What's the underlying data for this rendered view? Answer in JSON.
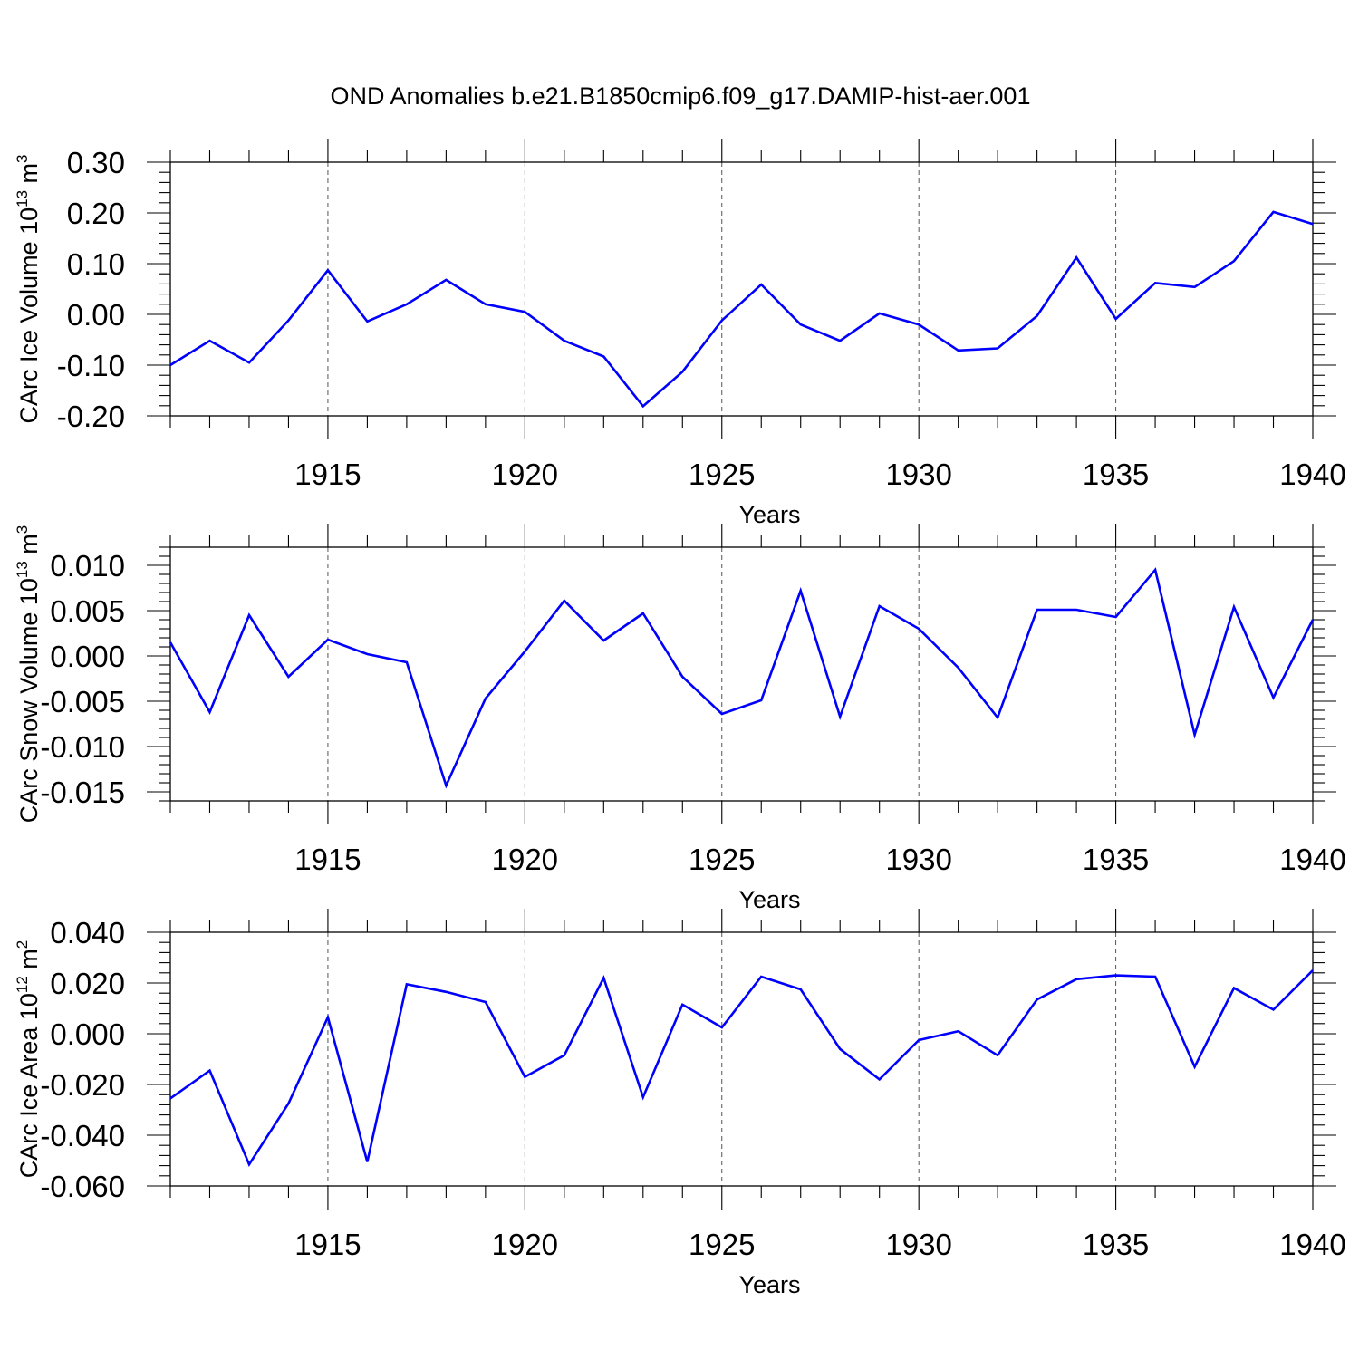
{
  "title": "OND Anomalies b.e21.B1850cmip6.f09_g17.DAMIP-hist-aer.001",
  "chart_data": [
    {
      "type": "line",
      "ylabel": "CArc Ice Volume 10",
      "ylabel_exp": "13",
      "ylabel_unit": " m",
      "ylabel_unit_exp": "3",
      "xlabel": "Years",
      "xlim": [
        1911,
        1940
      ],
      "ylim": [
        -0.2,
        0.3
      ],
      "yticks": [
        -0.2,
        -0.1,
        0.0,
        0.1,
        0.2,
        0.3
      ],
      "ytick_labels": [
        "-0.20",
        "-0.10",
        "0.00",
        "0.10",
        "0.20",
        "0.30"
      ],
      "xticks": [
        1915,
        1920,
        1925,
        1930,
        1935,
        1940
      ],
      "xtick_labels": [
        "1915",
        "1920",
        "1925",
        "1930",
        "1935",
        "1940"
      ],
      "grid": "vertical dashed at labeled years",
      "color": "#0000ff",
      "x": [
        1911,
        1912,
        1913,
        1914,
        1915,
        1916,
        1917,
        1918,
        1919,
        1920,
        1921,
        1922,
        1923,
        1924,
        1925,
        1926,
        1927,
        1928,
        1929,
        1930,
        1931,
        1932,
        1933,
        1934,
        1935,
        1936,
        1937,
        1938,
        1939,
        1940
      ],
      "y": [
        -0.1,
        -0.052,
        -0.095,
        -0.012,
        0.087,
        -0.014,
        0.02,
        0.068,
        0.02,
        0.005,
        -0.052,
        -0.083,
        -0.181,
        -0.113,
        -0.012,
        0.059,
        -0.02,
        -0.052,
        0.002,
        -0.02,
        -0.071,
        -0.067,
        -0.003,
        0.112,
        -0.009,
        0.062,
        0.054,
        0.105,
        0.202,
        0.178
      ]
    },
    {
      "type": "line",
      "ylabel": "CArc Snow Volume 10",
      "ylabel_exp": "13",
      "ylabel_unit": " m",
      "ylabel_unit_exp": "3",
      "xlabel": "Years",
      "xlim": [
        1911,
        1940
      ],
      "ylim": [
        -0.016,
        0.012
      ],
      "yticks": [
        -0.015,
        -0.01,
        -0.005,
        0.0,
        0.005,
        0.01
      ],
      "ytick_labels": [
        "-0.015",
        "-0.010",
        "-0.005",
        "0.000",
        "0.005",
        "0.010"
      ],
      "xticks": [
        1915,
        1920,
        1925,
        1930,
        1935,
        1940
      ],
      "xtick_labels": [
        "1915",
        "1920",
        "1925",
        "1930",
        "1935",
        "1940"
      ],
      "grid": "vertical dashed at labeled years",
      "color": "#0000ff",
      "x": [
        1911,
        1912,
        1913,
        1914,
        1915,
        1916,
        1917,
        1918,
        1919,
        1920,
        1921,
        1922,
        1923,
        1924,
        1925,
        1926,
        1927,
        1928,
        1929,
        1930,
        1931,
        1932,
        1933,
        1934,
        1935,
        1936,
        1937,
        1938,
        1939,
        1940
      ],
      "y": [
        0.0015,
        -0.0062,
        0.0045,
        -0.0023,
        0.0018,
        0.0002,
        -0.0007,
        -0.0143,
        -0.0047,
        0.0005,
        0.0061,
        0.0017,
        0.0047,
        -0.0023,
        -0.0064,
        -0.0049,
        0.0072,
        -0.0067,
        0.0055,
        0.003,
        -0.0013,
        -0.0068,
        0.0051,
        0.0051,
        0.0043,
        0.0095,
        -0.0087,
        0.0054,
        -0.0046,
        0.004
      ]
    },
    {
      "type": "line",
      "ylabel": "CArc Ice Area 10",
      "ylabel_exp": "12",
      "ylabel_unit": " m",
      "ylabel_unit_exp": "2",
      "xlabel": "Years",
      "xlim": [
        1911,
        1940
      ],
      "ylim": [
        -0.06,
        0.04
      ],
      "yticks": [
        -0.06,
        -0.04,
        -0.02,
        0.0,
        0.02,
        0.04
      ],
      "ytick_labels": [
        "-0.060",
        "-0.040",
        "-0.020",
        "0.000",
        "0.020",
        "0.040"
      ],
      "xticks": [
        1915,
        1920,
        1925,
        1930,
        1935,
        1940
      ],
      "xtick_labels": [
        "1915",
        "1920",
        "1925",
        "1930",
        "1935",
        "1940"
      ],
      "grid": "vertical dashed at labeled years",
      "color": "#0000ff",
      "x": [
        1911,
        1912,
        1913,
        1914,
        1915,
        1916,
        1917,
        1918,
        1919,
        1920,
        1921,
        1922,
        1923,
        1924,
        1925,
        1926,
        1927,
        1928,
        1929,
        1930,
        1931,
        1932,
        1933,
        1934,
        1935,
        1936,
        1937,
        1938,
        1939,
        1940
      ],
      "y": [
        -0.0255,
        -0.0145,
        -0.0515,
        -0.0275,
        0.0065,
        -0.0505,
        0.0195,
        0.0165,
        0.0125,
        -0.017,
        -0.0085,
        0.022,
        -0.025,
        0.0115,
        0.0025,
        0.0225,
        0.0175,
        -0.006,
        -0.018,
        -0.0025,
        0.001,
        -0.0085,
        0.0135,
        0.0215,
        0.023,
        0.0225,
        -0.013,
        0.018,
        0.0095,
        0.025
      ]
    }
  ]
}
